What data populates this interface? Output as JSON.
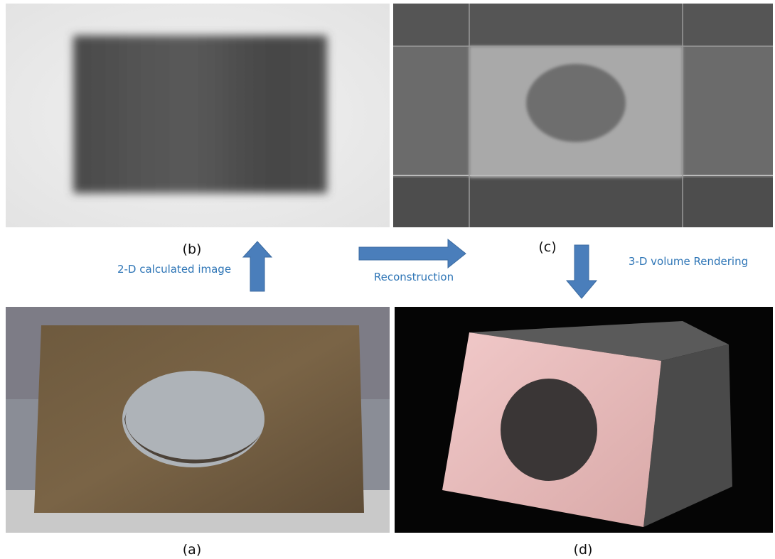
{
  "panels": {
    "b": {
      "label": "(b)"
    },
    "c": {
      "label": "(c)"
    },
    "a": {
      "label": "(a)"
    },
    "d": {
      "label": "(d)"
    }
  },
  "arrows": {
    "up": {
      "text": "2-D calculated image"
    },
    "right": {
      "text": "Reconstruction"
    },
    "down": {
      "text": "3-D volume Rendering"
    }
  }
}
